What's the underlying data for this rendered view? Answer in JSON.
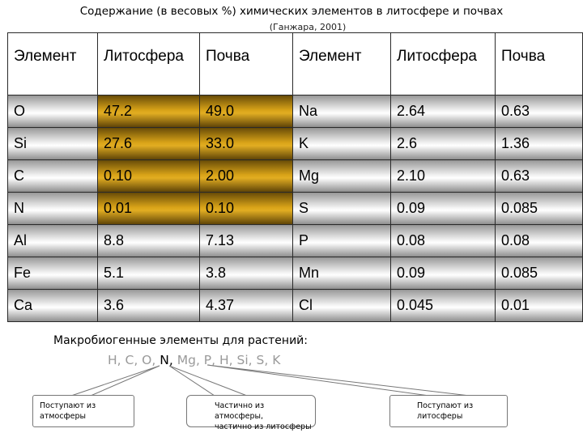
{
  "title": "Содержание (в весовых %) химических элементов в литосфере и почвах",
  "subtitle": "(Ганжара, 2001)",
  "table": {
    "headers": [
      "Элемент",
      "Литосфера",
      "Почва",
      "Элемент",
      "Литосфера",
      "Почва"
    ],
    "rows": [
      [
        "O",
        "47.2",
        "49.0",
        "Na",
        "2.64",
        "0.63"
      ],
      [
        "Si",
        "27.6",
        "33.0",
        "K",
        "2.6",
        "1.36"
      ],
      [
        "C",
        "0.10",
        "2.00",
        "Mg",
        "2.10",
        "0.63"
      ],
      [
        "N",
        "0.01",
        "0.10",
        "S",
        "0.09",
        "0.085"
      ],
      [
        "Al",
        "8.8",
        "7.13",
        "P",
        "0.08",
        "0.08"
      ],
      [
        "Fe",
        "5.1",
        "3.8",
        "Mn",
        "0.09",
        "0.085"
      ],
      [
        "Ca",
        "3.6",
        "4.37",
        "Cl",
        "0.045",
        "0.01"
      ]
    ]
  },
  "macro": {
    "label": "Макробиогенные элементы для растений:",
    "part1": "H, C, O,",
    "part2": "N,",
    "part3": "Mg, P, H, Si, S, K"
  },
  "callouts": {
    "from_atmosphere": [
      "Поступают из",
      "атмосферы"
    ],
    "partial": [
      "Частично из атмосферы,",
      "частично из литосферы"
    ],
    "from_lithosphere": [
      "Поступают из",
      "литосферы"
    ]
  },
  "colors": {
    "silver_band": "#f0f0f0",
    "gold_band": "#e2ad22",
    "grid_line": "#2a2a2a",
    "muted_text": "#9a9a9a"
  }
}
